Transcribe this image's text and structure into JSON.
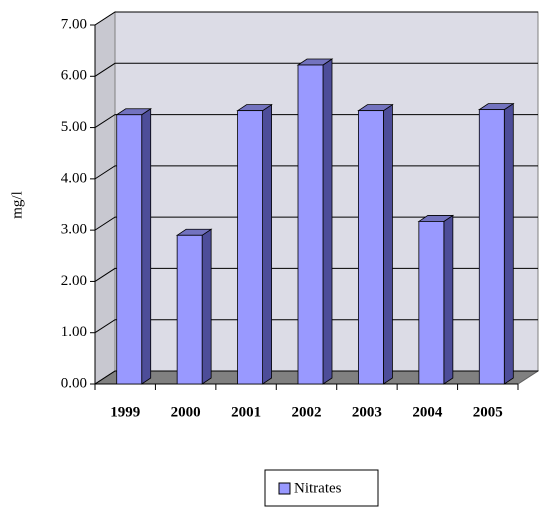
{
  "chart_data": {
    "type": "bar",
    "y_label": "mg/l",
    "categories": [
      "1999",
      "2000",
      "2001",
      "2002",
      "2003",
      "2004",
      "2005"
    ],
    "series": [
      {
        "name": "Nitrates",
        "color": "#9999ff",
        "values": [
          5.25,
          2.9,
          5.33,
          6.22,
          5.33,
          3.17,
          5.35
        ]
      }
    ],
    "ylim": [
      0,
      7
    ],
    "yticks": [
      {
        "value": 0,
        "label": "0.00"
      },
      {
        "value": 1,
        "label": "1.00"
      },
      {
        "value": 2,
        "label": "2.00"
      },
      {
        "value": 3,
        "label": "3.00"
      },
      {
        "value": 4,
        "label": "4.00"
      },
      {
        "value": 5,
        "label": "5.00"
      },
      {
        "value": 6,
        "label": "6.00"
      },
      {
        "value": 7,
        "label": "7.00"
      }
    ],
    "grid": true,
    "legend": "bottom"
  }
}
